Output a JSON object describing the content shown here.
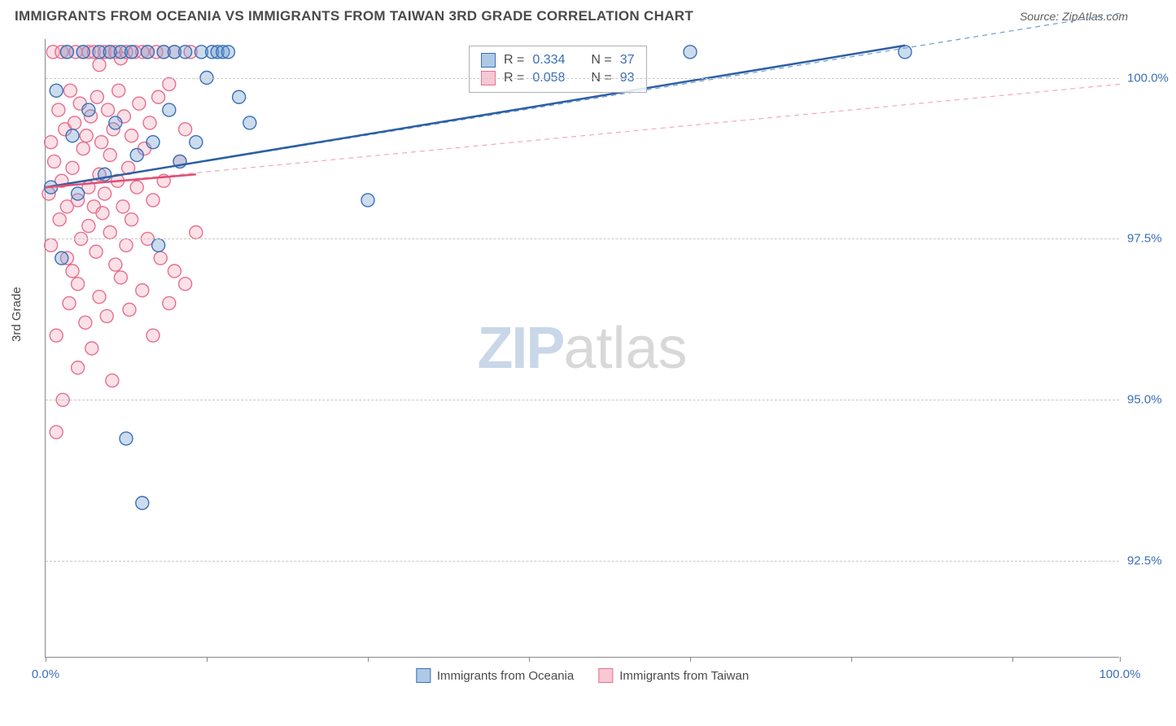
{
  "header": {
    "title": "IMMIGRANTS FROM OCEANIA VS IMMIGRANTS FROM TAIWAN 3RD GRADE CORRELATION CHART",
    "source_label": "Source: ",
    "source_value": "ZipAtlas.com"
  },
  "chart": {
    "type": "scatter",
    "ylabel": "3rd Grade",
    "xlim": [
      0,
      100
    ],
    "ylim": [
      91.0,
      100.6
    ],
    "xtick_positions": [
      0,
      15,
      30,
      45,
      60,
      75,
      90,
      100
    ],
    "xtick_labels": {
      "0": "0.0%",
      "100": "100.0%"
    },
    "ytick_positions": [
      92.5,
      95.0,
      97.5,
      100.0
    ],
    "ytick_labels": [
      "92.5%",
      "95.0%",
      "97.5%",
      "100.0%"
    ],
    "grid_color": "#c8c8c8",
    "axis_color": "#888888",
    "background_color": "#ffffff",
    "tick_label_color": "#3b6fb6",
    "label_color": "#4a4a4a",
    "label_fontsize": 15,
    "tick_fontsize": 15,
    "marker_radius": 8,
    "marker_fill_opacity": 0.35,
    "marker_stroke_width": 1.4,
    "series": [
      {
        "name": "Immigrants from Oceania",
        "color": "#6b9bd1",
        "stroke": "#3b6fb6",
        "trend": {
          "x1": 0,
          "y1": 98.3,
          "x2": 80,
          "y2": 100.5,
          "dash": "none",
          "width": 2.5,
          "color": "#2d5fa3"
        },
        "trend_ext": {
          "x1": 0,
          "y1": 98.3,
          "x2": 100,
          "y2": 101.0,
          "dash": "6,5",
          "width": 1.2,
          "color": "#6b9bd1"
        },
        "legend_top": {
          "r_label": "R =",
          "r_value": "0.334",
          "n_label": "N =",
          "n_value": "37"
        },
        "points": [
          [
            0.5,
            98.3
          ],
          [
            1,
            99.8
          ],
          [
            1.5,
            97.2
          ],
          [
            2,
            100.4
          ],
          [
            2.5,
            99.1
          ],
          [
            3,
            98.2
          ],
          [
            3.5,
            100.4
          ],
          [
            4,
            99.5
          ],
          [
            5,
            100.4
          ],
          [
            5.5,
            98.5
          ],
          [
            6,
            100.4
          ],
          [
            6.5,
            99.3
          ],
          [
            7,
            100.4
          ],
          [
            7.5,
            94.4
          ],
          [
            8,
            100.4
          ],
          [
            8.5,
            98.8
          ],
          [
            9,
            93.4
          ],
          [
            9.5,
            100.4
          ],
          [
            10,
            99.0
          ],
          [
            10.5,
            97.4
          ],
          [
            11,
            100.4
          ],
          [
            11.5,
            99.5
          ],
          [
            12,
            100.4
          ],
          [
            12.5,
            98.7
          ],
          [
            13,
            100.4
          ],
          [
            14,
            99.0
          ],
          [
            14.5,
            100.4
          ],
          [
            15,
            100.0
          ],
          [
            15.5,
            100.4
          ],
          [
            16,
            100.4
          ],
          [
            16.5,
            100.4
          ],
          [
            17,
            100.4
          ],
          [
            18,
            99.7
          ],
          [
            19,
            99.3
          ],
          [
            30,
            98.1
          ],
          [
            60,
            100.4
          ],
          [
            80,
            100.4
          ]
        ]
      },
      {
        "name": "Immigrants from Taiwan",
        "color": "#f4a8bb",
        "stroke": "#e76f8e",
        "trend": {
          "x1": 0,
          "y1": 98.3,
          "x2": 14,
          "y2": 98.5,
          "dash": "none",
          "width": 2.5,
          "color": "#e04f75"
        },
        "trend_ext": {
          "x1": 0,
          "y1": 98.3,
          "x2": 100,
          "y2": 99.9,
          "dash": "6,5",
          "width": 1.2,
          "color": "#f4a8bb"
        },
        "legend_top": {
          "r_label": "R =",
          "r_value": "0.058",
          "n_label": "N =",
          "n_value": "93"
        },
        "points": [
          [
            0.3,
            98.2
          ],
          [
            0.5,
            99.0
          ],
          [
            0.5,
            97.4
          ],
          [
            0.7,
            100.4
          ],
          [
            0.8,
            98.7
          ],
          [
            1,
            96.0
          ],
          [
            1,
            94.5
          ],
          [
            1.2,
            99.5
          ],
          [
            1.3,
            97.8
          ],
          [
            1.5,
            100.4
          ],
          [
            1.5,
            98.4
          ],
          [
            1.6,
            95.0
          ],
          [
            1.8,
            99.2
          ],
          [
            2,
            98.0
          ],
          [
            2,
            97.2
          ],
          [
            2,
            100.4
          ],
          [
            2.2,
            96.5
          ],
          [
            2.3,
            99.8
          ],
          [
            2.5,
            98.6
          ],
          [
            2.5,
            97.0
          ],
          [
            2.7,
            99.3
          ],
          [
            2.8,
            100.4
          ],
          [
            3,
            98.1
          ],
          [
            3,
            96.8
          ],
          [
            3,
            95.5
          ],
          [
            3.2,
            99.6
          ],
          [
            3.3,
            97.5
          ],
          [
            3.5,
            100.4
          ],
          [
            3.5,
            98.9
          ],
          [
            3.7,
            96.2
          ],
          [
            3.8,
            99.1
          ],
          [
            4,
            97.7
          ],
          [
            4,
            100.4
          ],
          [
            4,
            98.3
          ],
          [
            4.2,
            99.4
          ],
          [
            4.3,
            95.8
          ],
          [
            4.5,
            98.0
          ],
          [
            4.5,
            100.4
          ],
          [
            4.7,
            97.3
          ],
          [
            4.8,
            99.7
          ],
          [
            5,
            98.5
          ],
          [
            5,
            96.6
          ],
          [
            5,
            100.2
          ],
          [
            5.2,
            99.0
          ],
          [
            5.3,
            97.9
          ],
          [
            5.5,
            100.4
          ],
          [
            5.5,
            98.2
          ],
          [
            5.7,
            96.3
          ],
          [
            5.8,
            99.5
          ],
          [
            6,
            97.6
          ],
          [
            6,
            100.4
          ],
          [
            6,
            98.8
          ],
          [
            6.2,
            95.3
          ],
          [
            6.3,
            99.2
          ],
          [
            6.5,
            97.1
          ],
          [
            6.5,
            100.4
          ],
          [
            6.7,
            98.4
          ],
          [
            6.8,
            99.8
          ],
          [
            7,
            96.9
          ],
          [
            7,
            100.3
          ],
          [
            7.2,
            98.0
          ],
          [
            7.3,
            99.4
          ],
          [
            7.5,
            97.4
          ],
          [
            7.5,
            100.4
          ],
          [
            7.7,
            98.6
          ],
          [
            7.8,
            96.4
          ],
          [
            8,
            99.1
          ],
          [
            8,
            97.8
          ],
          [
            8.3,
            100.4
          ],
          [
            8.5,
            98.3
          ],
          [
            8.7,
            99.6
          ],
          [
            9,
            96.7
          ],
          [
            9,
            100.4
          ],
          [
            9.2,
            98.9
          ],
          [
            9.5,
            97.5
          ],
          [
            9.5,
            100.4
          ],
          [
            9.7,
            99.3
          ],
          [
            10,
            96.0
          ],
          [
            10,
            98.1
          ],
          [
            10.3,
            100.4
          ],
          [
            10.5,
            99.7
          ],
          [
            10.7,
            97.2
          ],
          [
            11,
            100.4
          ],
          [
            11,
            98.4
          ],
          [
            11.5,
            96.5
          ],
          [
            11.5,
            99.9
          ],
          [
            12,
            97.0
          ],
          [
            12,
            100.4
          ],
          [
            12.5,
            98.7
          ],
          [
            13,
            99.2
          ],
          [
            13,
            96.8
          ],
          [
            13.5,
            100.4
          ],
          [
            14,
            97.6
          ]
        ]
      }
    ],
    "legend_bottom": [
      {
        "label": "Immigrants from Oceania",
        "fill": "#aec9e6",
        "stroke": "#3b6fb6"
      },
      {
        "label": "Immigrants from Taiwan",
        "fill": "#f8c8d4",
        "stroke": "#e76f8e"
      }
    ]
  },
  "watermark": {
    "part1": "ZIP",
    "part2": "atlas"
  }
}
